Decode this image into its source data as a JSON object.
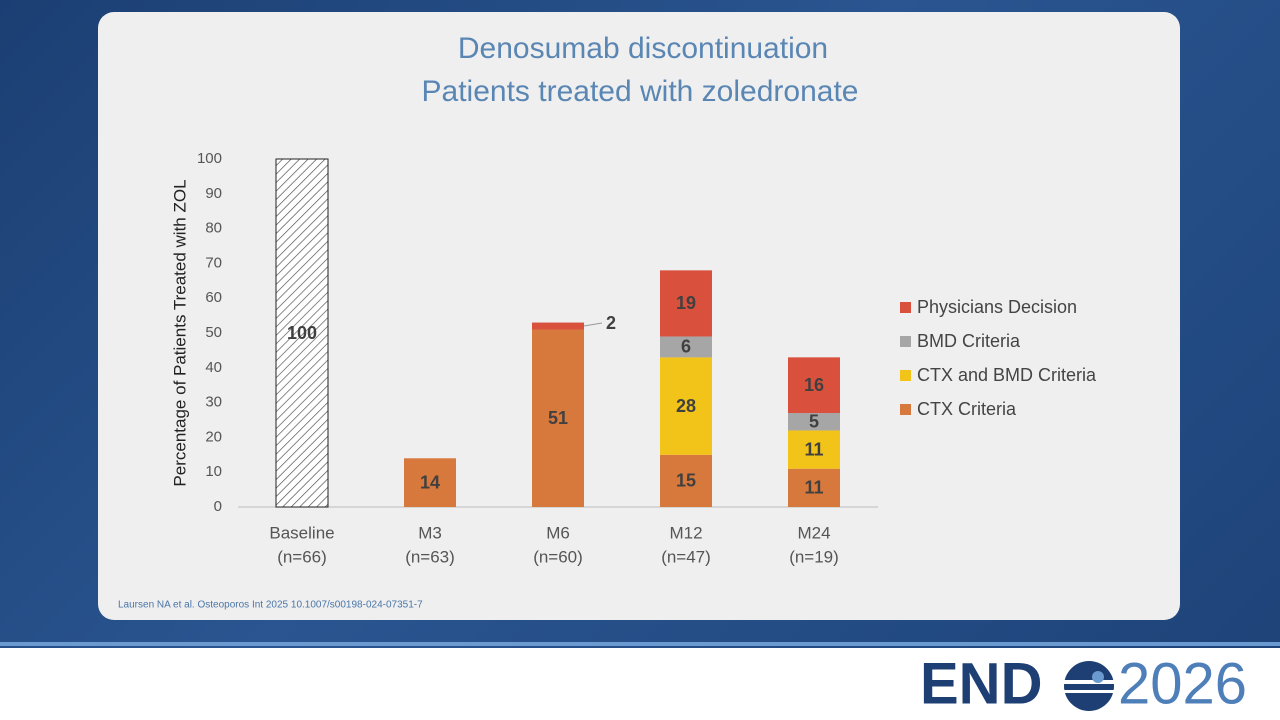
{
  "chart_data": {
    "type": "stacked-bar",
    "title": [
      "Denosumab discontinuation",
      "Patients treated with zoledronate"
    ],
    "y_label": "Percentage of Patients Treated with ZOL",
    "categories": [
      "Baseline",
      "M3",
      "M6",
      "M12",
      "M24"
    ],
    "category_n": [
      "(n=66)",
      "(n=63)",
      "(n=60)",
      "(n=47)",
      "(n=19)"
    ],
    "ylim": [
      0,
      100
    ],
    "yticks": [
      0,
      10,
      20,
      30,
      40,
      50,
      60,
      70,
      80,
      90,
      100
    ],
    "legend": "right",
    "series": [
      {
        "color": "#ffffff",
        "pattern": "hatch",
        "values": [
          100,
          null,
          null,
          null,
          null
        ]
      },
      {
        "name": "CTX Criteria",
        "color": "#d7783d",
        "values": [
          null,
          14,
          51,
          15,
          11
        ]
      },
      {
        "name": "CTX and BMD Criteria",
        "color": "#f2c318",
        "values": [
          null,
          null,
          null,
          28,
          11
        ]
      },
      {
        "name": "BMD Criteria",
        "color": "#a6a6a6",
        "values": [
          null,
          null,
          null,
          6,
          5
        ]
      },
      {
        "name": "Physicians Decision",
        "color": "#d9503c",
        "values": [
          null,
          null,
          2,
          19,
          16
        ]
      }
    ],
    "citation": "Laursen NA et al. Osteoporos Int 2025 10.1007/s00198-024-07351-7"
  },
  "footer": {
    "logo_left": "END",
    "logo_right": "2026"
  }
}
